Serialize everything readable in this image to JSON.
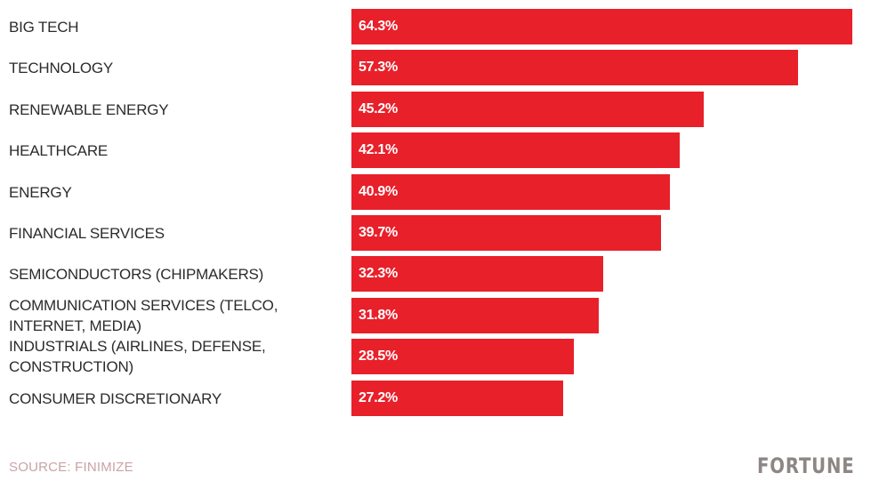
{
  "chart_data": {
    "type": "bar",
    "orientation": "horizontal",
    "categories": [
      "BIG TECH",
      "TECHNOLOGY",
      "RENEWABLE ENERGY",
      "HEALTHCARE",
      "ENERGY",
      "FINANCIAL SERVICES",
      "SEMICONDUCTORS (CHIPMAKERS)",
      "COMMUNICATION SERVICES (TELCO, INTERNET, MEDIA)",
      "INDUSTRIALS (AIRLINES, DEFENSE, CONSTRUCTION)",
      "CONSUMER DISCRETIONARY"
    ],
    "values": [
      64.3,
      57.3,
      45.2,
      42.1,
      40.9,
      39.7,
      32.3,
      31.8,
      28.5,
      27.2
    ],
    "value_labels": [
      "64.3%",
      "57.3%",
      "45.2%",
      "42.1%",
      "40.9%",
      "39.7%",
      "32.3%",
      "31.8%",
      "28.5%",
      "27.2%"
    ],
    "unit": "%",
    "bar_color": "#e8202a",
    "xlim": [
      0,
      64.3
    ],
    "grid": false
  },
  "footer": {
    "source": "SOURCE: FINIMIZE",
    "logo_text": "FORTUNE"
  }
}
